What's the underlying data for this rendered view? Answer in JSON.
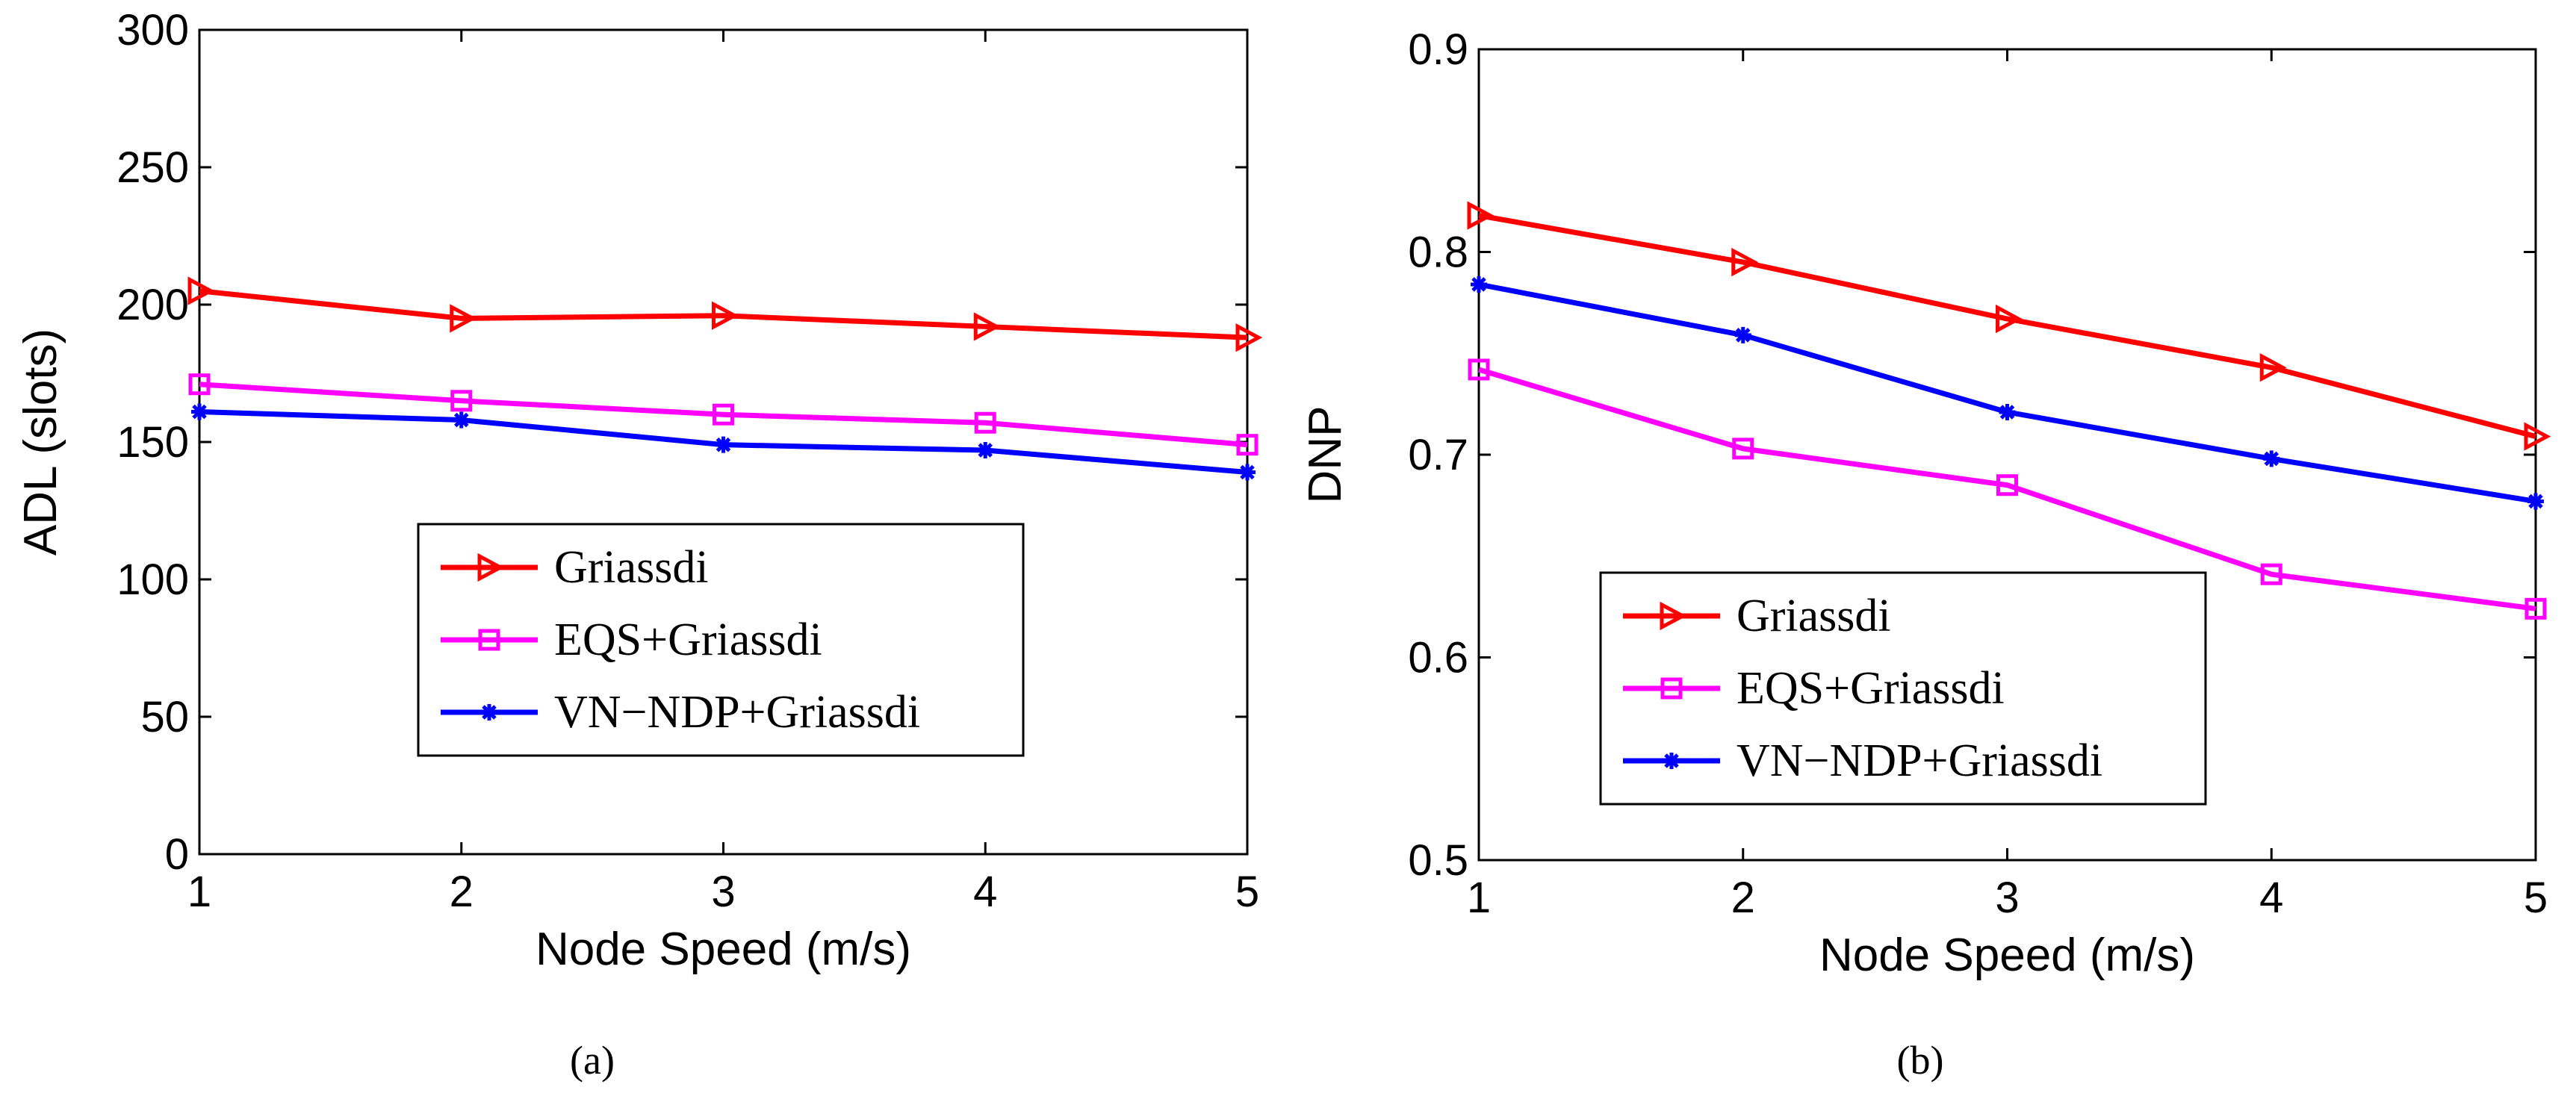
{
  "chart_data": [
    {
      "type": "line",
      "caption": "(a)",
      "xlabel": "Node Speed (m/s)",
      "ylabel": "ADL (slots)",
      "x": [
        1,
        2,
        3,
        4,
        5
      ],
      "xlim": [
        1,
        5
      ],
      "ylim": [
        0,
        300
      ],
      "xticks": [
        1,
        2,
        3,
        4,
        5
      ],
      "yticks": [
        0,
        50,
        100,
        150,
        200,
        250,
        300
      ],
      "grid": false,
      "legend_position": "center",
      "series": [
        {
          "name": "Griassdi",
          "color": "#ff0000",
          "marker": "triangle-right",
          "values": [
            205,
            195,
            196,
            192,
            188
          ]
        },
        {
          "name": "EQS+Griassdi",
          "color": "#ff00ff",
          "marker": "square",
          "values": [
            171,
            165,
            160,
            157,
            149
          ]
        },
        {
          "name": "VN−NDP+Griassdi",
          "color": "#0000ff",
          "marker": "star",
          "values": [
            161,
            158,
            149,
            147,
            139
          ]
        }
      ]
    },
    {
      "type": "line",
      "caption": "(b)",
      "xlabel": "Node Speed (m/s)",
      "ylabel": "DNP",
      "x": [
        1,
        2,
        3,
        4,
        5
      ],
      "xlim": [
        1,
        5
      ],
      "ylim": [
        0.5,
        0.9
      ],
      "xticks": [
        1,
        2,
        3,
        4,
        5
      ],
      "yticks": [
        0.5,
        0.6,
        0.7,
        0.8,
        0.9
      ],
      "grid": false,
      "legend_position": "bottom-left",
      "series": [
        {
          "name": "Griassdi",
          "color": "#ff0000",
          "marker": "triangle-right",
          "values": [
            0.818,
            0.795,
            0.767,
            0.743,
            0.709
          ]
        },
        {
          "name": "EQS+Griassdi",
          "color": "#ff00ff",
          "marker": "square",
          "values": [
            0.742,
            0.703,
            0.685,
            0.641,
            0.624
          ]
        },
        {
          "name": "VN−NDP+Griassdi",
          "color": "#0000ff",
          "marker": "star",
          "values": [
            0.784,
            0.759,
            0.721,
            0.698,
            0.677
          ]
        }
      ]
    }
  ]
}
